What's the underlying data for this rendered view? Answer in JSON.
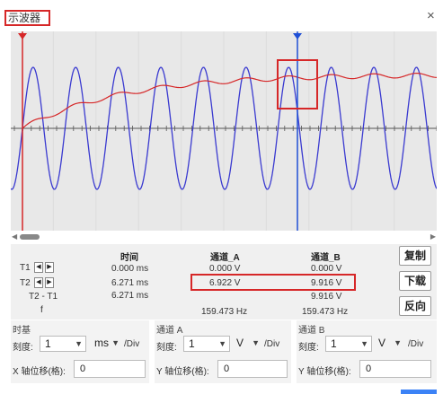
{
  "window": {
    "title": "示波器",
    "close_glyph": "×"
  },
  "scope": {
    "trace_a_color": "#d62728",
    "trace_b_color": "#3a3ad0",
    "cursor_t1_color": "#d62728",
    "cursor_t2_color": "#1f4fd6",
    "background": "#e8e8e8"
  },
  "readout": {
    "headers": {
      "time": "时间",
      "channel_a": "通道_A",
      "channel_b": "通道_B"
    },
    "rows": [
      {
        "label": "T1",
        "time": "0.000 ms",
        "a": "0.000 V",
        "b": "0.000 V"
      },
      {
        "label": "T2",
        "time": "6.271 ms",
        "a": "6.922 V",
        "b": "9.916 V"
      },
      {
        "label": "T2 - T1",
        "time": "6.271 ms",
        "a": "",
        "b": "9.916 V"
      },
      {
        "label": "f",
        "time": "",
        "a": "159.473 Hz",
        "b": "159.473 Hz"
      }
    ],
    "buttons": {
      "copy": "复制",
      "download": "下载",
      "reverse": "反向"
    }
  },
  "controls": {
    "timebase": {
      "title": "时基",
      "scale_label": "刻度:",
      "scale_value": "1",
      "unit_value": "ms",
      "unit_suffix": "/Div",
      "offset_label": "X 轴位移(格):",
      "offset_value": "0"
    },
    "channel_a": {
      "title": "通道 A",
      "scale_label": "刻度:",
      "scale_value": "1",
      "unit_value": "V",
      "unit_suffix": "/Div",
      "offset_label": "Y 轴位移(格):",
      "offset_value": "0"
    },
    "channel_b": {
      "title": "通道 B",
      "scale_label": "刻度:",
      "scale_value": "1",
      "unit_value": "V",
      "unit_suffix": "/Div",
      "offset_label": "Y 轴位移(格):",
      "offset_value": "0"
    }
  }
}
